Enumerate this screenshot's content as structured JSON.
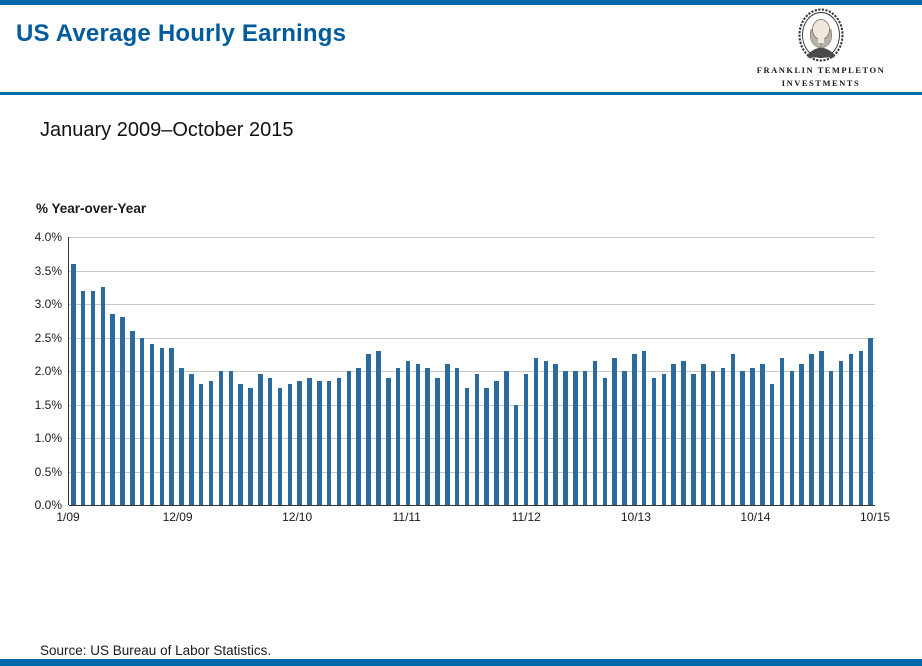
{
  "theme": {
    "accent_blue": "#005b9d",
    "band_blue": "#0069a8",
    "grid_gray": "#c9c9c9"
  },
  "header": {
    "title": "US Average Hourly Earnings",
    "logo": {
      "icon": "ben-franklin-medallion",
      "line1": "FRANKLIN TEMPLETON",
      "line2": "INVESTMENTS"
    }
  },
  "subtitle": "January 2009–October 2015",
  "source": "Source: US Bureau of Labor Statistics.",
  "chart_data": {
    "type": "bar",
    "title": "US Average Hourly Earnings",
    "subtitle": "January 2009–October 2015",
    "ylabel": "% Year-over-Year",
    "xlabel": "",
    "ylim": [
      0,
      4.0
    ],
    "ytick_step": 0.5,
    "ytick_labels": [
      "4.0%",
      "3.5%",
      "3.0%",
      "2.5%",
      "2.0%",
      "1.5%",
      "1.0%",
      "0.5%",
      "0.0%"
    ],
    "grid": true,
    "legend": "none",
    "bar_color": "#2c6a9c",
    "xtick_labels": [
      "1/09",
      "12/09",
      "12/10",
      "11/11",
      "11/12",
      "10/13",
      "10/14",
      "10/15"
    ],
    "xtick_indices": [
      0,
      11,
      23,
      34,
      46,
      57,
      69,
      81
    ],
    "x_months": [
      "1/09",
      "2/09",
      "3/09",
      "4/09",
      "5/09",
      "6/09",
      "7/09",
      "8/09",
      "9/09",
      "10/09",
      "11/09",
      "12/09",
      "1/10",
      "2/10",
      "3/10",
      "4/10",
      "5/10",
      "6/10",
      "7/10",
      "8/10",
      "9/10",
      "10/10",
      "11/10",
      "12/10",
      "1/11",
      "2/11",
      "3/11",
      "4/11",
      "5/11",
      "6/11",
      "7/11",
      "8/11",
      "9/11",
      "10/11",
      "11/11",
      "12/11",
      "1/12",
      "2/12",
      "3/12",
      "4/12",
      "5/12",
      "6/12",
      "7/12",
      "8/12",
      "9/12",
      "10/12",
      "11/12",
      "12/12",
      "1/13",
      "2/13",
      "3/13",
      "4/13",
      "5/13",
      "6/13",
      "7/13",
      "8/13",
      "9/13",
      "10/13",
      "11/13",
      "12/13",
      "1/14",
      "2/14",
      "3/14",
      "4/14",
      "5/14",
      "6/14",
      "7/14",
      "8/14",
      "9/14",
      "10/14",
      "11/14",
      "12/14",
      "1/15",
      "2/15",
      "3/15",
      "4/15",
      "5/15",
      "6/15",
      "7/15",
      "8/15",
      "9/15",
      "10/15"
    ],
    "values": [
      3.6,
      3.2,
      3.2,
      3.25,
      2.85,
      2.8,
      2.6,
      2.5,
      2.4,
      2.35,
      2.35,
      2.05,
      1.95,
      1.8,
      1.85,
      2.0,
      2.0,
      1.8,
      1.75,
      1.95,
      1.9,
      1.75,
      1.8,
      1.85,
      1.9,
      1.85,
      1.85,
      1.9,
      2.0,
      2.05,
      2.25,
      2.3,
      1.9,
      2.05,
      2.15,
      2.1,
      2.05,
      1.9,
      2.1,
      2.05,
      1.75,
      1.95,
      1.75,
      1.85,
      2.0,
      1.5,
      1.95,
      2.2,
      2.15,
      2.1,
      2.0,
      2.0,
      2.0,
      2.15,
      1.9,
      2.2,
      2.0,
      2.25,
      2.3,
      1.9,
      1.95,
      2.1,
      2.15,
      1.95,
      2.1,
      2.0,
      2.05,
      2.25,
      2.0,
      2.05,
      2.1,
      1.8,
      2.2,
      2.0,
      2.1,
      2.25,
      2.3,
      2.0,
      2.15,
      2.25,
      2.3,
      2.5
    ]
  }
}
